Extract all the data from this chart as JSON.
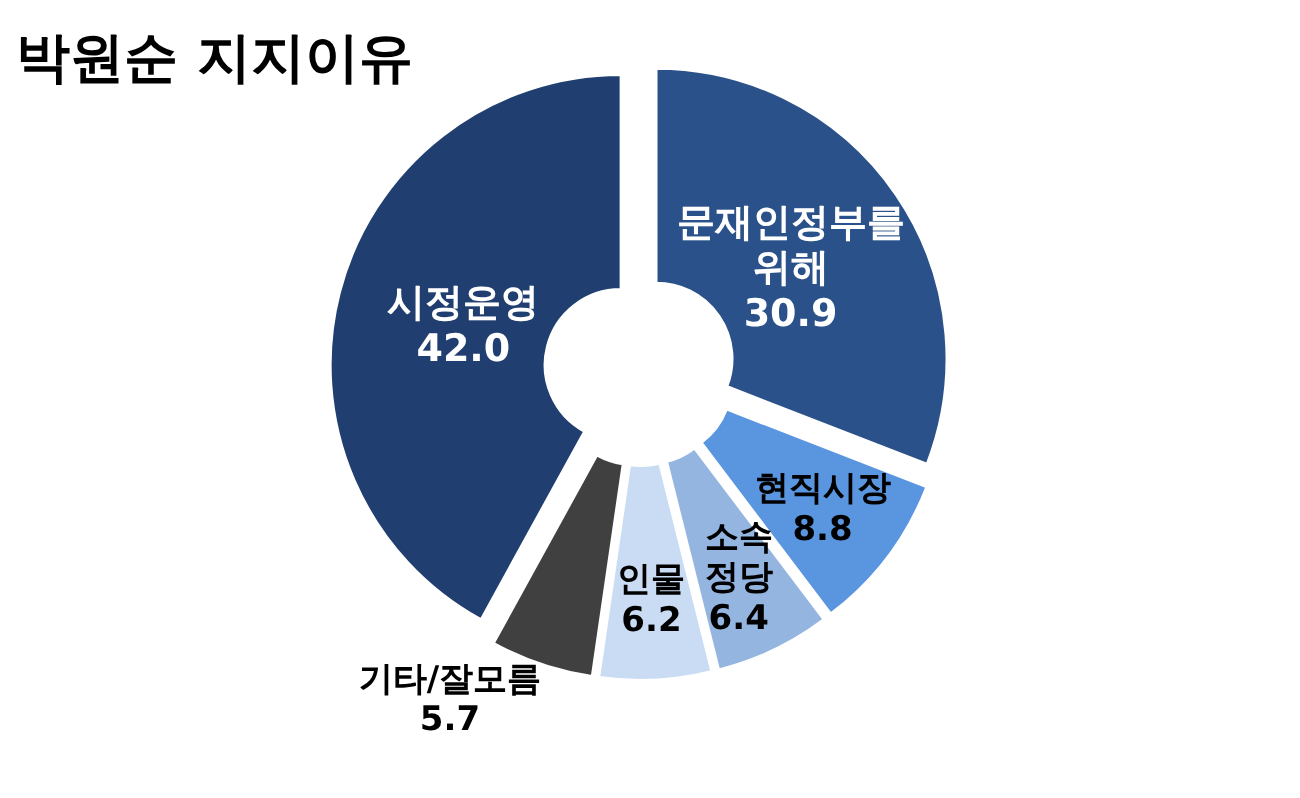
{
  "chart_data": {
    "type": "donut",
    "title": "박원순 지지이유",
    "categories": [
      "문재인정부를 위해",
      "현직시장",
      "소속 정당",
      "인물",
      "기타/잘모름",
      "시정운영"
    ],
    "values": [
      30.9,
      8.8,
      6.4,
      6.2,
      5.7,
      42.0
    ],
    "value_labels": [
      "30.9",
      "8.8",
      "6.4",
      "6.2",
      "5.7",
      "42.0"
    ],
    "colors": [
      "#2a5189",
      "#5a95e0",
      "#94b5e0",
      "#c9dcf3",
      "#404040",
      "#203f70"
    ]
  }
}
